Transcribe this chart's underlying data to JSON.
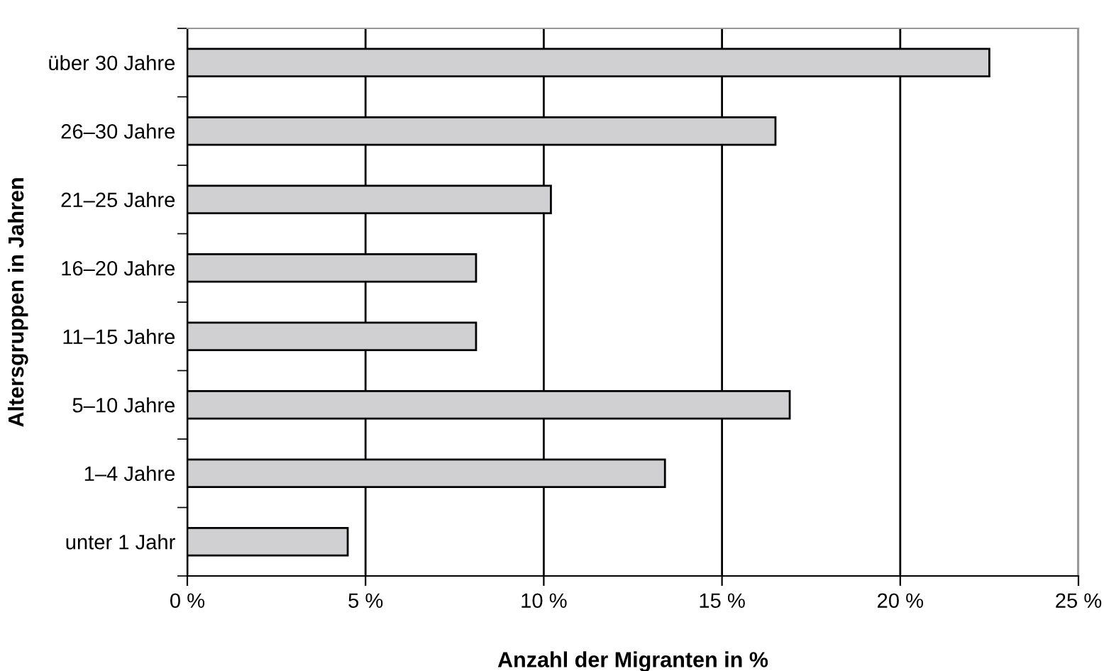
{
  "chart_data": {
    "type": "bar",
    "orientation": "horizontal",
    "xlabel": "Anzahl der Migranten in %",
    "ylabel": "Altersgruppen in Jahren",
    "categories": [
      "über 30 Jahre",
      "26–30 Jahre",
      "21–25 Jahre",
      "16–20 Jahre",
      "11–15 Jahre",
      "5–10 Jahre",
      "1–4 Jahre",
      "unter 1 Jahr"
    ],
    "values": [
      22.5,
      16.5,
      10.2,
      8.1,
      8.1,
      16.9,
      13.4,
      4.5
    ],
    "color": "#d0d0d2",
    "xlim": [
      0,
      25
    ],
    "xticks": [
      {
        "value": 0,
        "label": "0 %"
      },
      {
        "value": 5,
        "label": "5 %"
      },
      {
        "value": 10,
        "label": "10 %"
      },
      {
        "value": 15,
        "label": "15 %"
      },
      {
        "value": 20,
        "label": "20 %"
      },
      {
        "value": 25,
        "label": "25 %"
      }
    ],
    "grid": "x",
    "legend": false
  }
}
